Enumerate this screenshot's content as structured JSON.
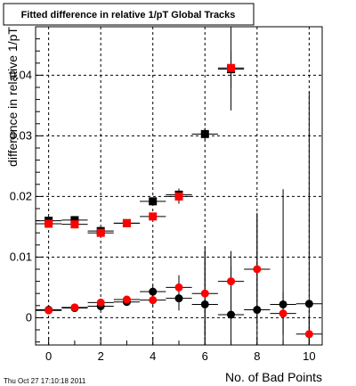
{
  "chart_data": {
    "type": "scatter",
    "title": "Fitted difference in relative 1/pT  Global Tracks",
    "xlabel": "No. of Bad Points",
    "ylabel": "difference in relative 1/pT",
    "xlim": [
      -0.5,
      10.5
    ],
    "ylim": [
      -0.0045,
      0.048
    ],
    "x_ticks": [
      "0",
      "2",
      "4",
      "6",
      "8",
      "10"
    ],
    "y_ticks": [
      "0",
      "0.01",
      "0.02",
      "0.03",
      "0.04"
    ],
    "grid": true,
    "series": [
      {
        "marker": "square",
        "color": "#000000",
        "points": [
          {
            "x": 0,
            "y": 0.016,
            "err": 0.0004
          },
          {
            "x": 1,
            "y": 0.0161,
            "err": 0.0004
          },
          {
            "x": 2,
            "y": 0.0143,
            "err": 0.0004
          },
          {
            "x": 3,
            "y": 0.0156,
            "err": 0.0003
          },
          {
            "x": 4,
            "y": 0.0192,
            "err": 0.0006
          },
          {
            "x": 5,
            "y": 0.0203,
            "err": 0.001
          },
          {
            "x": 6,
            "y": 0.0303,
            "err": 0.001
          },
          {
            "x": 7,
            "y": 0.041,
            "err": 0.003
          }
        ]
      },
      {
        "marker": "square",
        "color": "#ff0000",
        "points": [
          {
            "x": 0,
            "y": 0.0155,
            "err": 0.0004
          },
          {
            "x": 1,
            "y": 0.0154,
            "err": 0.0004
          },
          {
            "x": 2,
            "y": 0.014,
            "err": 0.0004
          },
          {
            "x": 3,
            "y": 0.0156,
            "err": 0.0003
          },
          {
            "x": 4,
            "y": 0.0167,
            "err": 0.0006
          },
          {
            "x": 5,
            "y": 0.02,
            "err": 0.0012
          },
          {
            "x": 7,
            "y": 0.0412,
            "err": 0.007
          }
        ]
      },
      {
        "marker": "circle",
        "color": "#000000",
        "points": [
          {
            "x": 0,
            "y": 0.0013,
            "err": 0.0003
          },
          {
            "x": 1,
            "y": 0.0016,
            "err": 0.0003
          },
          {
            "x": 2,
            "y": 0.0019,
            "err": 0.0004
          },
          {
            "x": 3,
            "y": 0.0026,
            "err": 0.0004
          },
          {
            "x": 4,
            "y": 0.0043,
            "err": 0.001
          },
          {
            "x": 5,
            "y": 0.0032,
            "err": 0.002
          },
          {
            "x": 6,
            "y": 0.0022,
            "err": 0.0095
          },
          {
            "x": 7,
            "y": 0.0005,
            "err": 0.008
          },
          {
            "x": 8,
            "y": 0.0013,
            "err": 0.016
          },
          {
            "x": 9,
            "y": 0.0022,
            "err": 0.019
          },
          {
            "x": 10,
            "y": 0.0023,
            "err": 0.035
          }
        ]
      },
      {
        "marker": "circle",
        "color": "#ff0000",
        "points": [
          {
            "x": 0,
            "y": 0.0012,
            "err": 0.0003
          },
          {
            "x": 1,
            "y": 0.0017,
            "err": 0.0003
          },
          {
            "x": 2,
            "y": 0.0025,
            "err": 0.0004
          },
          {
            "x": 3,
            "y": 0.003,
            "err": 0.0004
          },
          {
            "x": 4,
            "y": 0.0029,
            "err": 0.001
          },
          {
            "x": 5,
            "y": 0.005,
            "err": 0.002
          },
          {
            "x": 6,
            "y": 0.004,
            "err": 0.007
          },
          {
            "x": 7,
            "y": 0.006,
            "err": 0.005
          },
          {
            "x": 8,
            "y": 0.008,
            "err": 0.009
          },
          {
            "x": 9,
            "y": 0.0007,
            "err": 0.0035
          },
          {
            "x": 10,
            "y": -0.0027,
            "err": 0.003
          }
        ]
      }
    ]
  },
  "timestamp": "Thu Oct 27 17:10:18 2011"
}
